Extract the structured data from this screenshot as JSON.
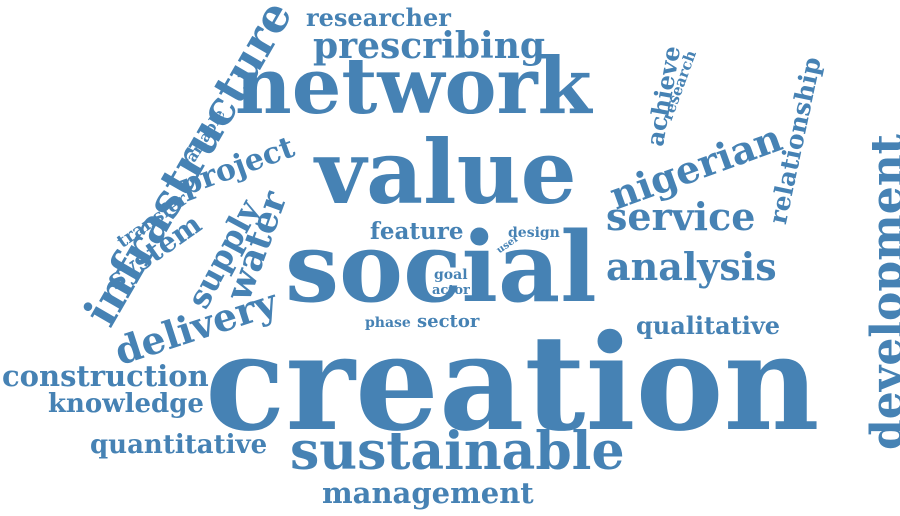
{
  "color": "#4682b4",
  "words": {
    "creation": "creation",
    "social": "social",
    "value": "value",
    "network": "network",
    "sustainable": "sustainable",
    "infrastructure": "infrastructure",
    "development": "development",
    "prescribing": "prescribing",
    "nigerian": "nigerian",
    "service": "service",
    "analysis": "analysis",
    "delivery": "delivery",
    "water": "water",
    "supply": "supply",
    "system": "system",
    "project": "project",
    "management": "management",
    "construction": "construction",
    "knowledge": "knowledge",
    "quantitative": "quantitative",
    "relationship": "relationship",
    "qualitative": "qualitative",
    "achieve": "achieve",
    "researcher": "researcher",
    "feature": "feature",
    "sector": "sector",
    "phase": "phase",
    "design": "design",
    "user": "user",
    "goal": "goal",
    "actor": "actor",
    "research": "research",
    "transfer": "transfer",
    "variable": "variable"
  }
}
